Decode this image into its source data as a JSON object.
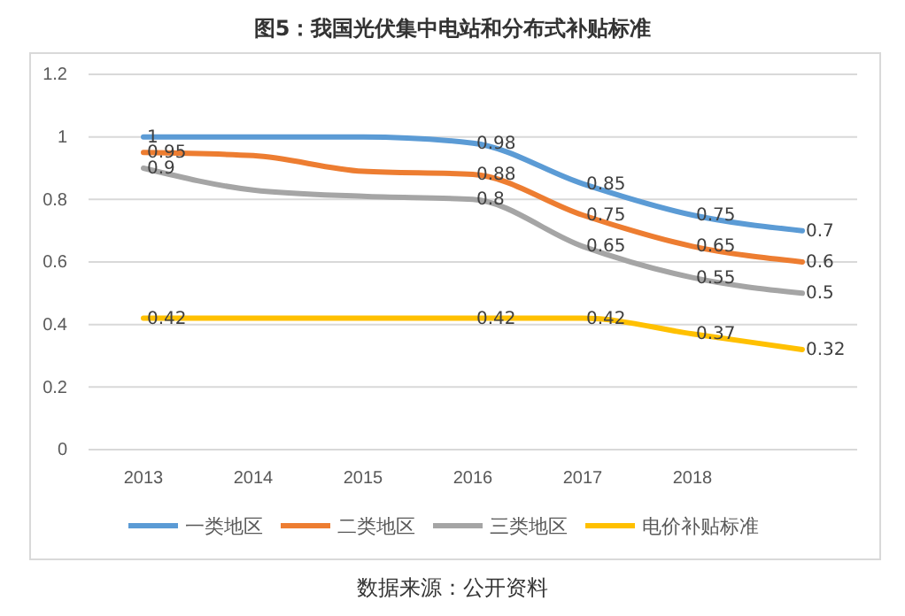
{
  "chart_data": {
    "type": "line",
    "title": "图5：我国光伏集中电站和分布式补贴标准",
    "categories": [
      "2013",
      "2014",
      "2015",
      "2016",
      "2017",
      "2018",
      null
    ],
    "series": [
      {
        "name": "一类地区",
        "color": "#5b9bd5",
        "values": [
          1,
          1,
          1,
          0.98,
          0.85,
          0.75,
          0.7
        ],
        "value_labels": [
          "1",
          null,
          null,
          "0.98",
          "0.85",
          "0.75",
          "0.7"
        ]
      },
      {
        "name": "二类地区",
        "color": "#ed7d31",
        "values": [
          0.95,
          0.94,
          0.89,
          0.88,
          0.75,
          0.65,
          0.6
        ],
        "value_labels": [
          "0.95",
          null,
          null,
          "0.88",
          "0.75",
          "0.65",
          "0.6"
        ]
      },
      {
        "name": "三类地区",
        "color": "#a5a5a5",
        "values": [
          0.9,
          0.83,
          0.81,
          0.8,
          0.65,
          0.55,
          0.5
        ],
        "value_labels": [
          "0.9",
          null,
          null,
          "0.8",
          "0.65",
          "0.55",
          "0.5"
        ]
      },
      {
        "name": "电价补贴标准",
        "color": "#ffc000",
        "values": [
          0.42,
          0.42,
          0.42,
          0.42,
          0.42,
          0.37,
          0.32
        ],
        "value_labels": [
          "0.42",
          null,
          null,
          "0.42",
          "0.42",
          "0.37",
          "0.32"
        ]
      }
    ],
    "ylim": [
      0,
      1.2
    ],
    "yticks": [
      0,
      0.2,
      0.4,
      0.6,
      0.8,
      1,
      1.2
    ],
    "grid": "y",
    "legend": "bottom",
    "marker": "none",
    "line_style": "solid",
    "annotations": [
      "数据来源：公开资料"
    ]
  }
}
